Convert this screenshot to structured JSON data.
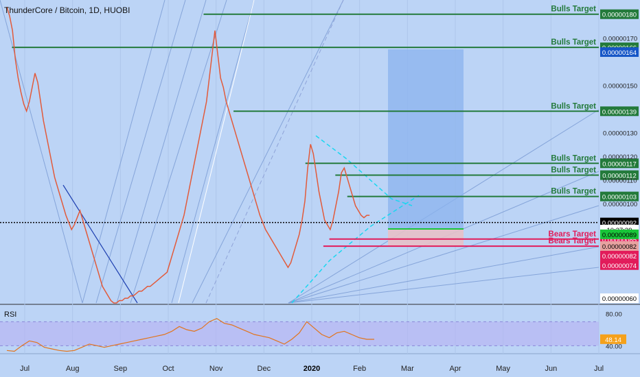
{
  "chart_data": {
    "type": "line",
    "title": "ThunderCore / Bitcoin, 1D, HUOBI",
    "x_ticks": [
      "Jul",
      "Aug",
      "Sep",
      "Oct",
      "Nov",
      "Dec",
      "2020",
      "Feb",
      "Mar",
      "Apr",
      "May",
      "Jun",
      "Jul"
    ],
    "price_axis": {
      "ylim": [
        5.8e-07,
        1.86e-06
      ],
      "ticks": [
        "0.00000170",
        "0.00000150",
        "0.00000130",
        "0.00000120",
        "0.00000110",
        "0.00000100",
        "0.00000060"
      ],
      "tick_values": [
        1.7e-06,
        1.5e-06,
        1.3e-06,
        1.2e-06,
        1.1e-06,
        1e-06,
        6e-07
      ]
    },
    "series": [
      {
        "points": [
          [
            0,
            180
          ],
          [
            3,
            176
          ],
          [
            6,
            170
          ],
          [
            9,
            158
          ],
          [
            12,
            150
          ],
          [
            15,
            144
          ],
          [
            18,
            139
          ],
          [
            21,
            136
          ],
          [
            24,
            140
          ],
          [
            27,
            146
          ],
          [
            30,
            152
          ],
          [
            33,
            148
          ],
          [
            36,
            140
          ],
          [
            39,
            132
          ],
          [
            42,
            126
          ],
          [
            45,
            120
          ],
          [
            48,
            114
          ],
          [
            51,
            108
          ],
          [
            54,
            104
          ],
          [
            57,
            100
          ],
          [
            60,
            96
          ],
          [
            63,
            92
          ],
          [
            66,
            89
          ],
          [
            69,
            86
          ],
          [
            72,
            88
          ],
          [
            75,
            91
          ],
          [
            78,
            94
          ],
          [
            81,
            90
          ],
          [
            84,
            86
          ],
          [
            87,
            82
          ],
          [
            90,
            78
          ],
          [
            93,
            74
          ],
          [
            96,
            70
          ],
          [
            99,
            66
          ],
          [
            102,
            62
          ],
          [
            105,
            60
          ],
          [
            108,
            58
          ],
          [
            111,
            56
          ],
          [
            114,
            55
          ],
          [
            117,
            55
          ],
          [
            120,
            56
          ],
          [
            123,
            56
          ],
          [
            126,
            57
          ],
          [
            129,
            57
          ],
          [
            132,
            58
          ],
          [
            135,
            58
          ],
          [
            138,
            59
          ],
          [
            141,
            60
          ],
          [
            144,
            60
          ],
          [
            147,
            61
          ],
          [
            150,
            62
          ],
          [
            153,
            62
          ],
          [
            156,
            63
          ],
          [
            159,
            64
          ],
          [
            162,
            65
          ],
          [
            165,
            66
          ],
          [
            168,
            67
          ],
          [
            171,
            68
          ],
          [
            174,
            72
          ],
          [
            177,
            76
          ],
          [
            180,
            80
          ],
          [
            183,
            84
          ],
          [
            186,
            88
          ],
          [
            189,
            92
          ],
          [
            192,
            98
          ],
          [
            195,
            104
          ],
          [
            198,
            110
          ],
          [
            201,
            116
          ],
          [
            204,
            122
          ],
          [
            207,
            128
          ],
          [
            210,
            134
          ],
          [
            213,
            140
          ],
          [
            216,
            150
          ],
          [
            219,
            160
          ],
          [
            222,
            170
          ],
          [
            225,
            160
          ],
          [
            228,
            150
          ],
          [
            231,
            146
          ],
          [
            234,
            140
          ],
          [
            237,
            136
          ],
          [
            240,
            132
          ],
          [
            243,
            128
          ],
          [
            246,
            124
          ],
          [
            249,
            120
          ],
          [
            252,
            116
          ],
          [
            255,
            112
          ],
          [
            258,
            108
          ],
          [
            261,
            104
          ],
          [
            264,
            100
          ],
          [
            267,
            96
          ],
          [
            270,
            92
          ],
          [
            273,
            89
          ],
          [
            276,
            86
          ],
          [
            279,
            84
          ],
          [
            282,
            82
          ],
          [
            285,
            80
          ],
          [
            288,
            78
          ],
          [
            291,
            76
          ],
          [
            294,
            74
          ],
          [
            297,
            72
          ],
          [
            300,
            70
          ],
          [
            303,
            72
          ],
          [
            306,
            76
          ],
          [
            309,
            80
          ],
          [
            312,
            84
          ],
          [
            315,
            90
          ],
          [
            318,
            98
          ],
          [
            321,
            112
          ],
          [
            324,
            122
          ],
          [
            327,
            118
          ],
          [
            330,
            110
          ],
          [
            333,
            102
          ],
          [
            336,
            96
          ],
          [
            339,
            90
          ],
          [
            342,
            88
          ],
          [
            345,
            86
          ],
          [
            348,
            90
          ],
          [
            351,
            96
          ],
          [
            354,
            102
          ],
          [
            357,
            110
          ],
          [
            360,
            112
          ],
          [
            363,
            108
          ],
          [
            366,
            104
          ],
          [
            369,
            100
          ],
          [
            372,
            96
          ],
          [
            375,
            94
          ],
          [
            378,
            92
          ],
          [
            381,
            91
          ],
          [
            384,
            92
          ],
          [
            387,
            92
          ]
        ],
        "color": "#e25a3a"
      }
    ],
    "levels": [
      {
        "label": "Bulls Target",
        "value": "0.00000180",
        "y": 1.8e-06,
        "x_from": 0.34,
        "color": "#237a3b",
        "badge_bg": "#237a3b"
      },
      {
        "label": "Bulls Target",
        "value": "0.00000166",
        "y": 1.66e-06,
        "x_from": 0.02,
        "color": "#237a3b",
        "badge_bg": "#237a3b"
      },
      {
        "label": "Bulls Target",
        "value": "0.00000139",
        "y": 1.39e-06,
        "x_from": 0.39,
        "color": "#237a3b",
        "badge_bg": "#237a3b"
      },
      {
        "label": "Bulls Target",
        "value": "0.00000117",
        "y": 1.17e-06,
        "x_from": 0.51,
        "color": "#237a3b",
        "badge_bg": "#237a3b"
      },
      {
        "label": "Bulls Target",
        "value": "0.00000112",
        "y": 1.12e-06,
        "x_from": 0.56,
        "color": "#237a3b",
        "badge_bg": "#237a3b"
      },
      {
        "label": "Bulls Target",
        "value": "0.00000103",
        "y": 1.03e-06,
        "x_from": 0.58,
        "color": "#237a3b",
        "badge_bg": "#237a3b"
      },
      {
        "label": "Bears Target",
        "value": "0.00000085",
        "y": 8.5e-07,
        "x_from": 0.55,
        "color": "#e21b5a",
        "badge_bg": "#e21b5a"
      },
      {
        "label": "Bears Target",
        "value": "0.00000082",
        "y": 8.2e-07,
        "x_from": 0.54,
        "color": "#e21b5a",
        "badge_bg": "#e7a2a0"
      }
    ],
    "other_badges": [
      {
        "value": "0.00000164",
        "y": 1.64e-06,
        "bg": "#1656c7",
        "color": "#ffffff"
      },
      {
        "value": "0.00000092",
        "y": 9.2e-07,
        "bg": "#000000",
        "color": "#ffffff"
      },
      {
        "value": "10:37:39",
        "y": 8.9e-07,
        "bg": "#ffffff",
        "color": "#000000"
      },
      {
        "value": "0.00000089",
        "y": 8.7e-07,
        "bg": "#19c639",
        "color": "#000000"
      },
      {
        "value": "0.00000082",
        "y": 7.8e-07,
        "bg": "#e21b5a",
        "color": "#ffffff"
      },
      {
        "value": "0.00000074",
        "y": 7.4e-07,
        "bg": "#e21b5a",
        "color": "#ffffff"
      },
      {
        "value": "0.00000060",
        "y": 6e-07,
        "bg": "#ffffff",
        "color": "#000000"
      }
    ],
    "rsi": {
      "label": "RSI",
      "ylim": [
        30,
        90
      ],
      "ticks": [
        "80.00",
        "40.00"
      ],
      "value": "48.14",
      "values": [
        [
          0,
          34
        ],
        [
          8,
          33
        ],
        [
          16,
          40
        ],
        [
          24,
          46
        ],
        [
          32,
          44
        ],
        [
          40,
          38
        ],
        [
          48,
          36
        ],
        [
          56,
          34
        ],
        [
          64,
          33
        ],
        [
          72,
          34
        ],
        [
          80,
          38
        ],
        [
          88,
          42
        ],
        [
          96,
          40
        ],
        [
          104,
          38
        ],
        [
          112,
          40
        ],
        [
          120,
          42
        ],
        [
          128,
          44
        ],
        [
          136,
          46
        ],
        [
          144,
          48
        ],
        [
          152,
          50
        ],
        [
          160,
          52
        ],
        [
          168,
          54
        ],
        [
          176,
          58
        ],
        [
          184,
          64
        ],
        [
          192,
          60
        ],
        [
          200,
          58
        ],
        [
          208,
          62
        ],
        [
          216,
          70
        ],
        [
          224,
          74
        ],
        [
          232,
          68
        ],
        [
          240,
          66
        ],
        [
          248,
          62
        ],
        [
          256,
          58
        ],
        [
          264,
          54
        ],
        [
          272,
          52
        ],
        [
          280,
          50
        ],
        [
          288,
          46
        ],
        [
          296,
          42
        ],
        [
          304,
          48
        ],
        [
          312,
          56
        ],
        [
          320,
          70
        ],
        [
          328,
          62
        ],
        [
          336,
          54
        ],
        [
          344,
          50
        ],
        [
          352,
          56
        ],
        [
          360,
          58
        ],
        [
          368,
          54
        ],
        [
          376,
          50
        ],
        [
          384,
          48
        ],
        [
          392,
          48
        ]
      ]
    }
  },
  "ui": {
    "accent_box_color": "#8bb3ee",
    "dotted_line_color": "#000000"
  }
}
